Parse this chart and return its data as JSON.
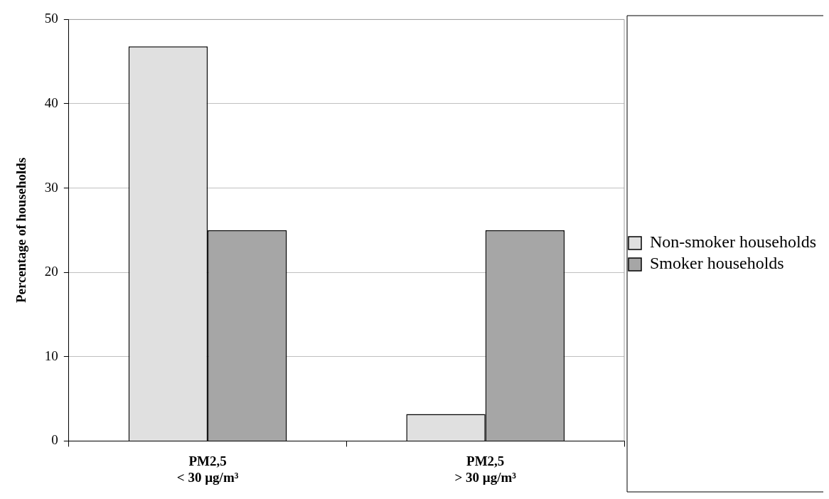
{
  "chart_data": {
    "type": "bar",
    "categories": [
      "PM2,5\n< 30 µg/m³",
      "PM2,5\n> 30 µg/m³"
    ],
    "series": [
      {
        "name": "Non-smoker households",
        "color": "#e0e0e0",
        "values": [
          46.8,
          3.2
        ]
      },
      {
        "name": "Smoker households",
        "color": "#a6a6a6",
        "values": [
          25,
          25
        ]
      }
    ],
    "ylabel": "Percentage of households",
    "ylim": [
      0,
      50
    ],
    "yticks": [
      0,
      10,
      20,
      30,
      40,
      50
    ],
    "grid": "y",
    "legend": "right"
  }
}
